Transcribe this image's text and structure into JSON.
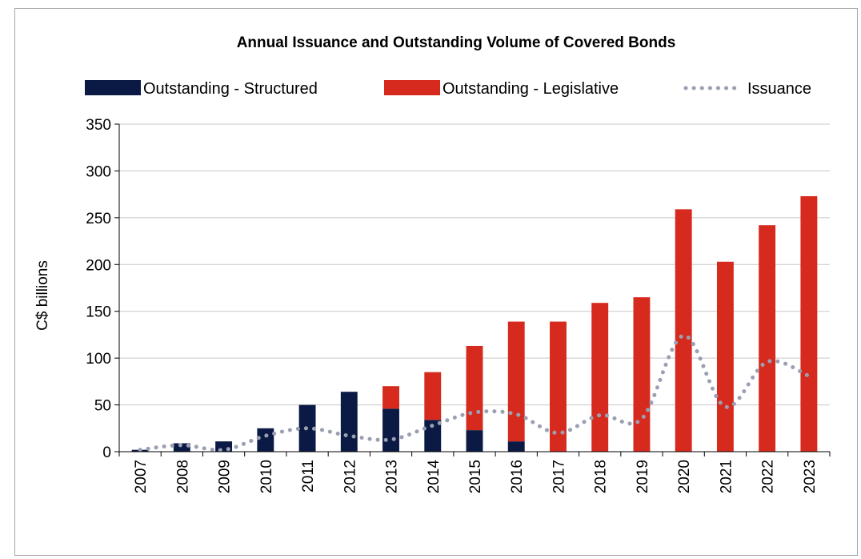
{
  "chart_data": {
    "type": "bar",
    "title": "Annual Issuance and Outstanding Volume of Covered Bonds",
    "ylabel": "C$ billions",
    "xlabel": "",
    "ylim": [
      0,
      350
    ],
    "yticks": [
      0,
      50,
      100,
      150,
      200,
      250,
      300,
      350
    ],
    "grid": true,
    "legend_position": "top",
    "categories": [
      "2007",
      "2008",
      "2009",
      "2010",
      "2011",
      "2012",
      "2013",
      "2014",
      "2015",
      "2016",
      "2017",
      "2018",
      "2019",
      "2020",
      "2021",
      "2022",
      "2023"
    ],
    "series": [
      {
        "name": "Outstanding - Structured",
        "kind": "stacked-bar",
        "color": "#0b1a45",
        "values": [
          2,
          9,
          11,
          25,
          50,
          64,
          46,
          34,
          23,
          11,
          0,
          0,
          0,
          0,
          0,
          0,
          0
        ]
      },
      {
        "name": "Outstanding - Legislative",
        "kind": "stacked-bar",
        "color": "#d62a1e",
        "values": [
          0,
          0,
          0,
          0,
          0,
          0,
          24,
          51,
          90,
          128,
          139,
          159,
          165,
          259,
          203,
          242,
          273
        ]
      },
      {
        "name": "Issuance",
        "kind": "dotted-line",
        "color": "#9aa0b2",
        "values": [
          2,
          7,
          2,
          17,
          25,
          17,
          13,
          28,
          42,
          40,
          20,
          39,
          35,
          124,
          48,
          96,
          81
        ]
      }
    ]
  }
}
